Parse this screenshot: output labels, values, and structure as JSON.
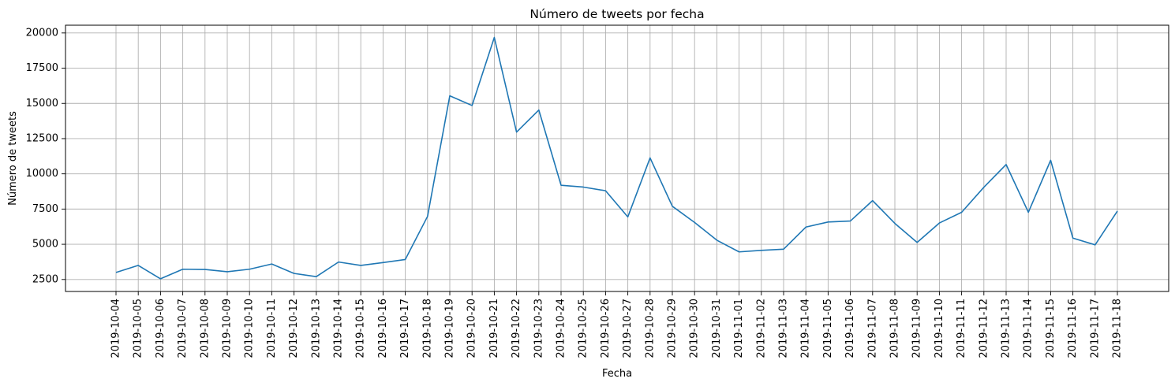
{
  "chart_data": {
    "type": "line",
    "title": "Número de tweets por fecha",
    "xlabel": "Fecha",
    "ylabel": "Número de tweets",
    "ylim": [
      1650,
      20550
    ],
    "yticks": [
      2500,
      5000,
      7500,
      10000,
      12500,
      15000,
      17500,
      20000
    ],
    "grid": true,
    "colors": {
      "line": "#1f77b4",
      "grid": "#b0b0b0",
      "axes": "#000000"
    },
    "x": [
      "2019-10-04",
      "2019-10-05",
      "2019-10-06",
      "2019-10-07",
      "2019-10-08",
      "2019-10-09",
      "2019-10-10",
      "2019-10-11",
      "2019-10-12",
      "2019-10-13",
      "2019-10-14",
      "2019-10-15",
      "2019-10-16",
      "2019-10-17",
      "2019-10-18",
      "2019-10-19",
      "2019-10-20",
      "2019-10-21",
      "2019-10-22",
      "2019-10-23",
      "2019-10-24",
      "2019-10-25",
      "2019-10-26",
      "2019-10-27",
      "2019-10-28",
      "2019-10-29",
      "2019-10-30",
      "2019-10-31",
      "2019-11-01",
      "2019-11-02",
      "2019-11-03",
      "2019-11-04",
      "2019-11-05",
      "2019-11-06",
      "2019-11-07",
      "2019-11-08",
      "2019-11-09",
      "2019-11-10",
      "2019-11-11",
      "2019-11-12",
      "2019-11-13",
      "2019-11-14",
      "2019-11-15",
      "2019-11-16",
      "2019-11-17",
      "2019-11-18"
    ],
    "series": [
      {
        "values": [
          3000,
          3500,
          2550,
          3230,
          3210,
          3050,
          3230,
          3600,
          2930,
          2700,
          3740,
          3500,
          3700,
          3920,
          6980,
          15540,
          14850,
          19680,
          12960,
          14530,
          9190,
          9060,
          8800,
          6940,
          11130,
          7700,
          6550,
          5290,
          4460,
          4570,
          4650,
          6220,
          6580,
          6650,
          8100,
          6480,
          5130,
          6510,
          7270,
          9050,
          10660,
          7270,
          10960,
          5440,
          4960,
          7360
        ]
      }
    ]
  }
}
